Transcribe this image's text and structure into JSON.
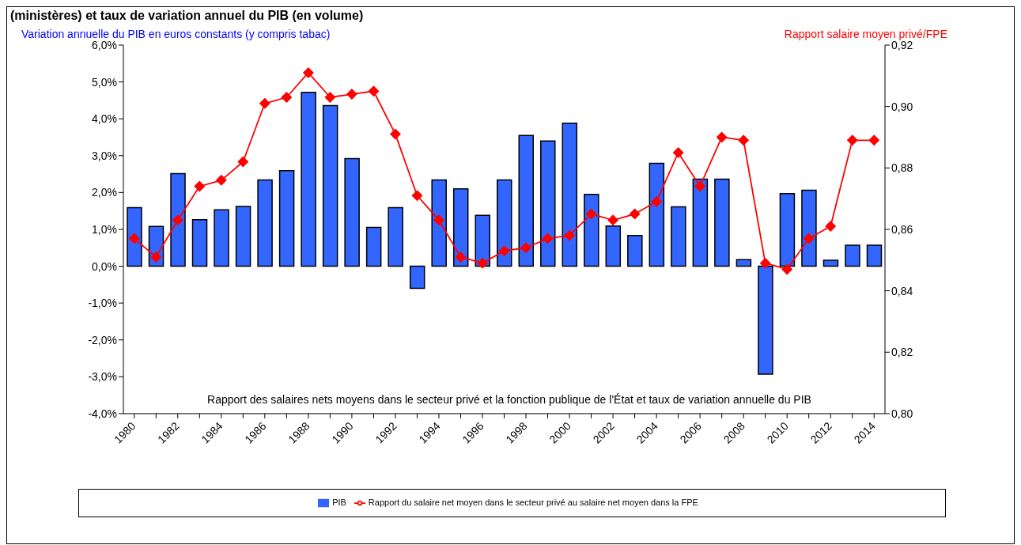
{
  "chart_data": {
    "type": "bar",
    "title": "(ministères) et taux de variation annuel du PIB (en volume)",
    "ylabel": "Variation annuelle du PIB  en euros constants (y compris tabac)",
    "y2label": "Rapport salaire moyen privé/FPE",
    "categories": [
      "1980",
      null,
      "1982",
      null,
      "1984",
      null,
      "1986",
      null,
      "1988",
      null,
      "1990",
      null,
      "1992",
      null,
      "1994",
      null,
      "1996",
      null,
      "1998",
      null,
      "2000",
      null,
      "2002",
      null,
      "2004",
      null,
      "2006",
      null,
      "2008",
      null,
      "2010",
      null,
      "2012",
      null,
      "2014"
    ],
    "series": [
      {
        "name": "PIB",
        "color": "#3366ff",
        "values": [
          1.59,
          1.08,
          2.51,
          1.26,
          1.53,
          1.62,
          2.34,
          2.59,
          4.72,
          4.36,
          2.92,
          1.05,
          1.59,
          -0.6,
          2.34,
          2.1,
          1.38,
          2.34,
          3.55,
          3.4,
          3.88,
          1.95,
          1.09,
          0.83,
          2.79,
          1.61,
          2.36,
          2.36,
          0.18,
          -2.93,
          1.97,
          2.06,
          0.16,
          0.57,
          0.57
        ]
      },
      {
        "name": "Rapport du salaire net moyen dans le secteur privé au salaire net moyen dans la FPE",
        "type": "line",
        "axis": "y2",
        "color": "#ff0000",
        "values": [
          0.857,
          0.851,
          0.863,
          0.874,
          0.876,
          0.882,
          0.901,
          0.903,
          0.911,
          0.903,
          0.904,
          0.905,
          0.891,
          0.871,
          0.863,
          0.851,
          0.849,
          0.853,
          0.854,
          0.857,
          0.858,
          0.865,
          0.863,
          0.865,
          0.869,
          0.885,
          0.874,
          0.89,
          0.889,
          0.849,
          0.847,
          0.857,
          0.861,
          0.889,
          0.889
        ]
      }
    ],
    "ylim": [
      -4,
      6
    ],
    "yticks": [
      {
        "value": -4,
        "label": "-4,0%"
      },
      {
        "value": -3,
        "label": "-3,0%"
      },
      {
        "value": -2,
        "label": "-2,0%"
      },
      {
        "value": -1,
        "label": "-1,0%"
      },
      {
        "value": 0,
        "label": "0,0%"
      },
      {
        "value": 1,
        "label": "1,0%"
      },
      {
        "value": 2,
        "label": "2,0%"
      },
      {
        "value": 3,
        "label": "3,0%"
      },
      {
        "value": 4,
        "label": "4,0%"
      },
      {
        "value": 5,
        "label": "5,0%"
      },
      {
        "value": 6,
        "label": "6,0%"
      }
    ],
    "y2lim": [
      0.8,
      0.92
    ],
    "y2ticks": [
      {
        "value": 0.8,
        "label": "0,80"
      },
      {
        "value": 0.82,
        "label": "0,82"
      },
      {
        "value": 0.84,
        "label": "0,84"
      },
      {
        "value": 0.86,
        "label": "0,86"
      },
      {
        "value": 0.88,
        "label": "0,88"
      },
      {
        "value": 0.9,
        "label": "0,90"
      },
      {
        "value": 0.92,
        "label": "0,92"
      }
    ],
    "annotations": [
      "Rapport des salaires nets moyens dans le secteur privé et la fonction publique de l'État  et taux de variation annuelle du PIB"
    ],
    "grid": false,
    "legend": "bottom",
    "marker": "diamond",
    "line_style": "solid"
  }
}
